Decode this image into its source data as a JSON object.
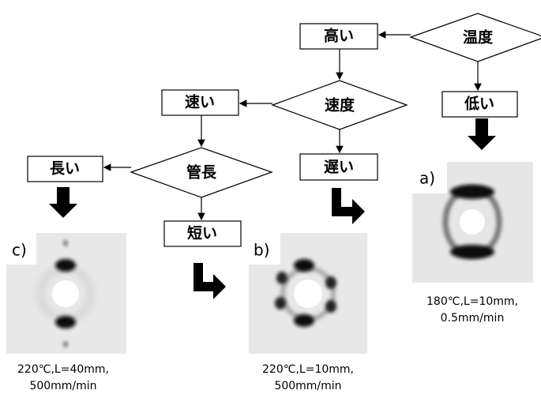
{
  "nodes": [
    {
      "label": "温度"
    },
    {
      "label": "高い"
    },
    {
      "label": "低い"
    },
    {
      "label": "速度"
    },
    {
      "label": "速い"
    },
    {
      "label": "遅い"
    },
    {
      "label": "管長"
    },
    {
      "label": "長い"
    },
    {
      "label": "短い"
    }
  ],
  "panels": [
    {
      "label": "a)",
      "caption": [
        "180℃,L=10mm,",
        "0.5mm/min"
      ]
    },
    {
      "label": "b)",
      "caption": [
        "220℃,L=10mm,",
        "500mm/min"
      ]
    },
    {
      "label": "c)",
      "caption": [
        "220℃,L=40mm,",
        "500mm/min"
      ]
    }
  ]
}
